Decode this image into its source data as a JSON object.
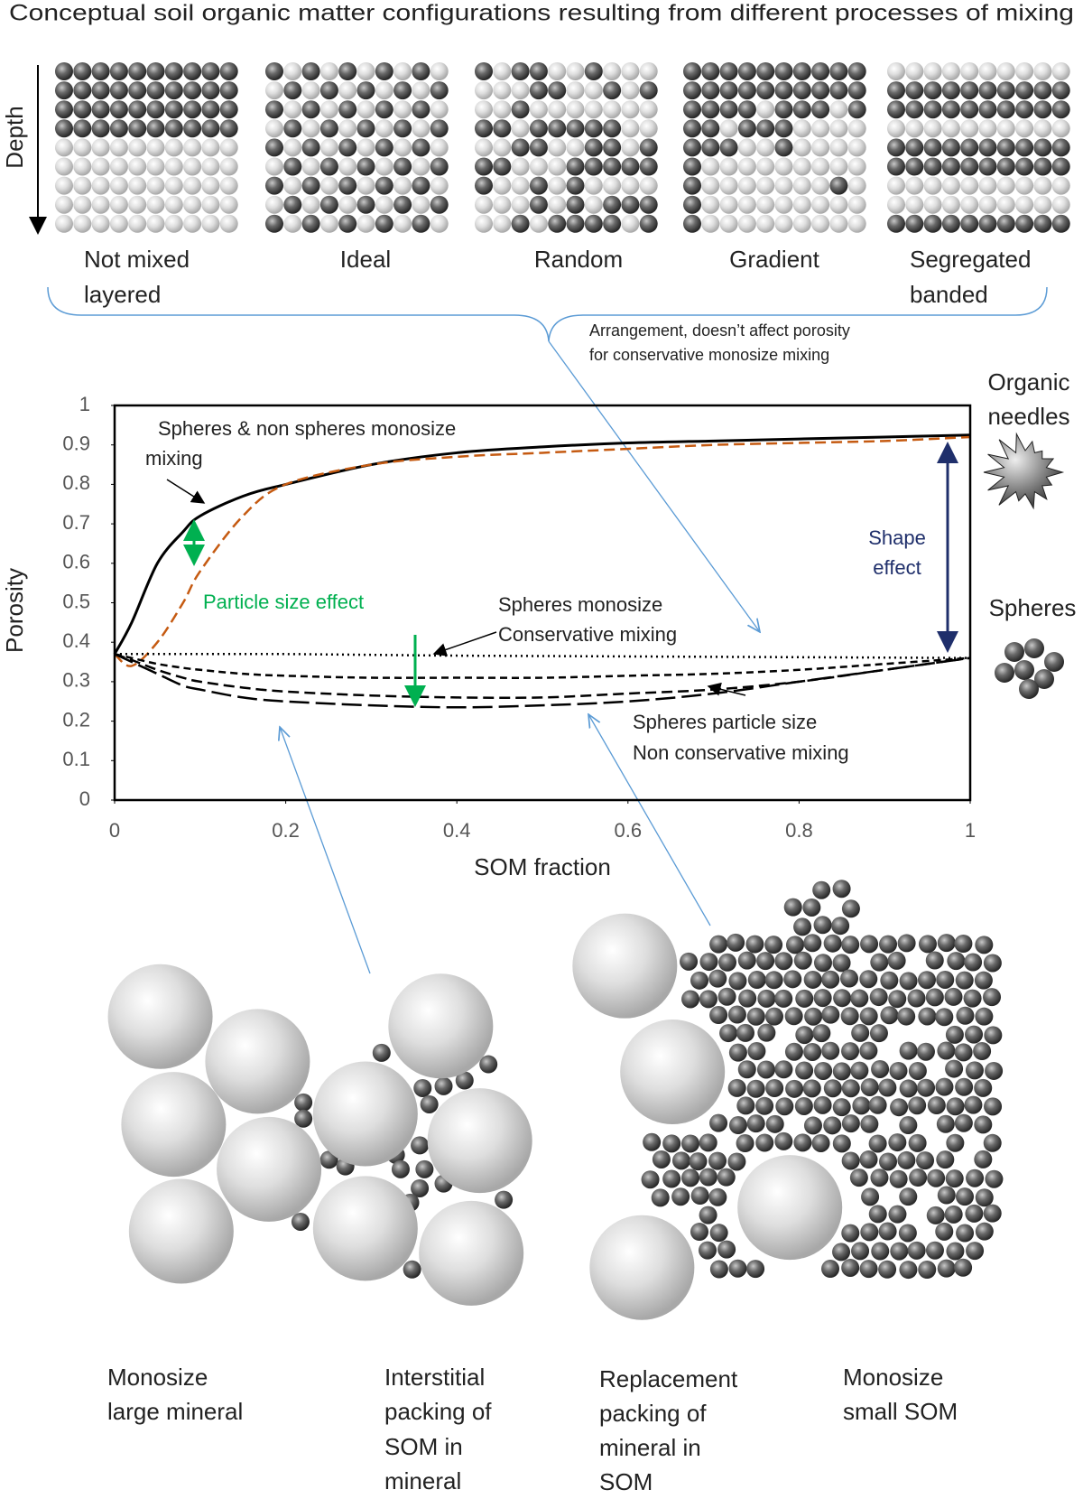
{
  "title": "Conceptual soil organic matter configurations resulting from different processes of mixing",
  "depth_label": "Depth",
  "configurations": [
    [
      "Not mixed",
      "layered"
    ],
    [
      "Ideal"
    ],
    [
      "Random"
    ],
    [
      "Gradient"
    ],
    [
      "Segregated",
      "banded"
    ]
  ],
  "arrangement_note": [
    "Arrangement, doesn’t affect porosity",
    "for conservative monosize mixing"
  ],
  "side_labels": {
    "needles": [
      "Organic",
      "needles"
    ],
    "spheres": [
      "Spheres"
    ]
  },
  "packings": [
    [
      "Monosize",
      "large mineral"
    ],
    [
      "Interstitial",
      "packing of",
      "SOM in",
      "mineral"
    ],
    [
      "Replacement",
      "packing of",
      "mineral in",
      "SOM"
    ],
    [
      "Monosize",
      "small SOM"
    ]
  ],
  "chart_data": {
    "type": "line",
    "xlabel": "SOM fraction",
    "ylabel": "Porosity",
    "xlim": [
      0,
      1
    ],
    "ylim": [
      0,
      1
    ],
    "xticks": [
      0,
      0.2,
      0.4,
      0.6,
      0.8,
      1
    ],
    "yticks": [
      0,
      0.1,
      0.2,
      0.3,
      0.4,
      0.5,
      0.6,
      0.7,
      0.8,
      0.9,
      1
    ],
    "grid": false,
    "x": [
      0,
      0.02,
      0.05,
      0.08,
      0.1,
      0.15,
      0.2,
      0.3,
      0.4,
      0.5,
      0.6,
      0.7,
      0.8,
      0.9,
      1
    ],
    "series": [
      {
        "color": "#000000",
        "dash": "solid",
        "values": [
          0.37,
          0.45,
          0.6,
          0.68,
          0.72,
          0.77,
          0.8,
          0.85,
          0.88,
          0.895,
          0.905,
          0.91,
          0.915,
          0.92,
          0.925
        ]
      },
      {
        "color": "#c55a11",
        "dash": "dash",
        "values": [
          0.37,
          0.34,
          0.4,
          0.5,
          0.58,
          0.72,
          0.8,
          0.85,
          0.87,
          0.88,
          0.89,
          0.9,
          0.905,
          0.91,
          0.92
        ]
      },
      {
        "color": "#000000",
        "dash": "dotted",
        "values": [
          0.37,
          0.37,
          0.37,
          0.37,
          0.37,
          0.37,
          0.37,
          0.368,
          0.366,
          0.365,
          0.364,
          0.363,
          0.362,
          0.361,
          0.36
        ]
      },
      {
        "color": "#000000",
        "dash": "short-dash",
        "values": [
          0.37,
          0.36,
          0.345,
          0.335,
          0.33,
          0.32,
          0.315,
          0.31,
          0.31,
          0.31,
          0.315,
          0.32,
          0.33,
          0.345,
          0.36
        ]
      },
      {
        "color": "#000000",
        "dash": "dash",
        "values": [
          0.37,
          0.355,
          0.33,
          0.31,
          0.3,
          0.285,
          0.275,
          0.265,
          0.26,
          0.26,
          0.27,
          0.28,
          0.3,
          0.33,
          0.36
        ]
      },
      {
        "color": "#000000",
        "dash": "long-dash",
        "values": [
          0.37,
          0.35,
          0.32,
          0.29,
          0.28,
          0.26,
          0.25,
          0.24,
          0.235,
          0.24,
          0.25,
          0.27,
          0.3,
          0.33,
          0.36
        ]
      }
    ],
    "annotations": {
      "monosize": [
        "Spheres & non spheres monosize",
        "mixing"
      ],
      "size_effect": "Particle size effect",
      "conservative": [
        "Spheres monosize",
        "Conservative mixing"
      ],
      "shape": [
        "Shape",
        "effect"
      ],
      "nonconservative": [
        "Spheres particle size",
        "Non conservative mixing"
      ]
    }
  }
}
